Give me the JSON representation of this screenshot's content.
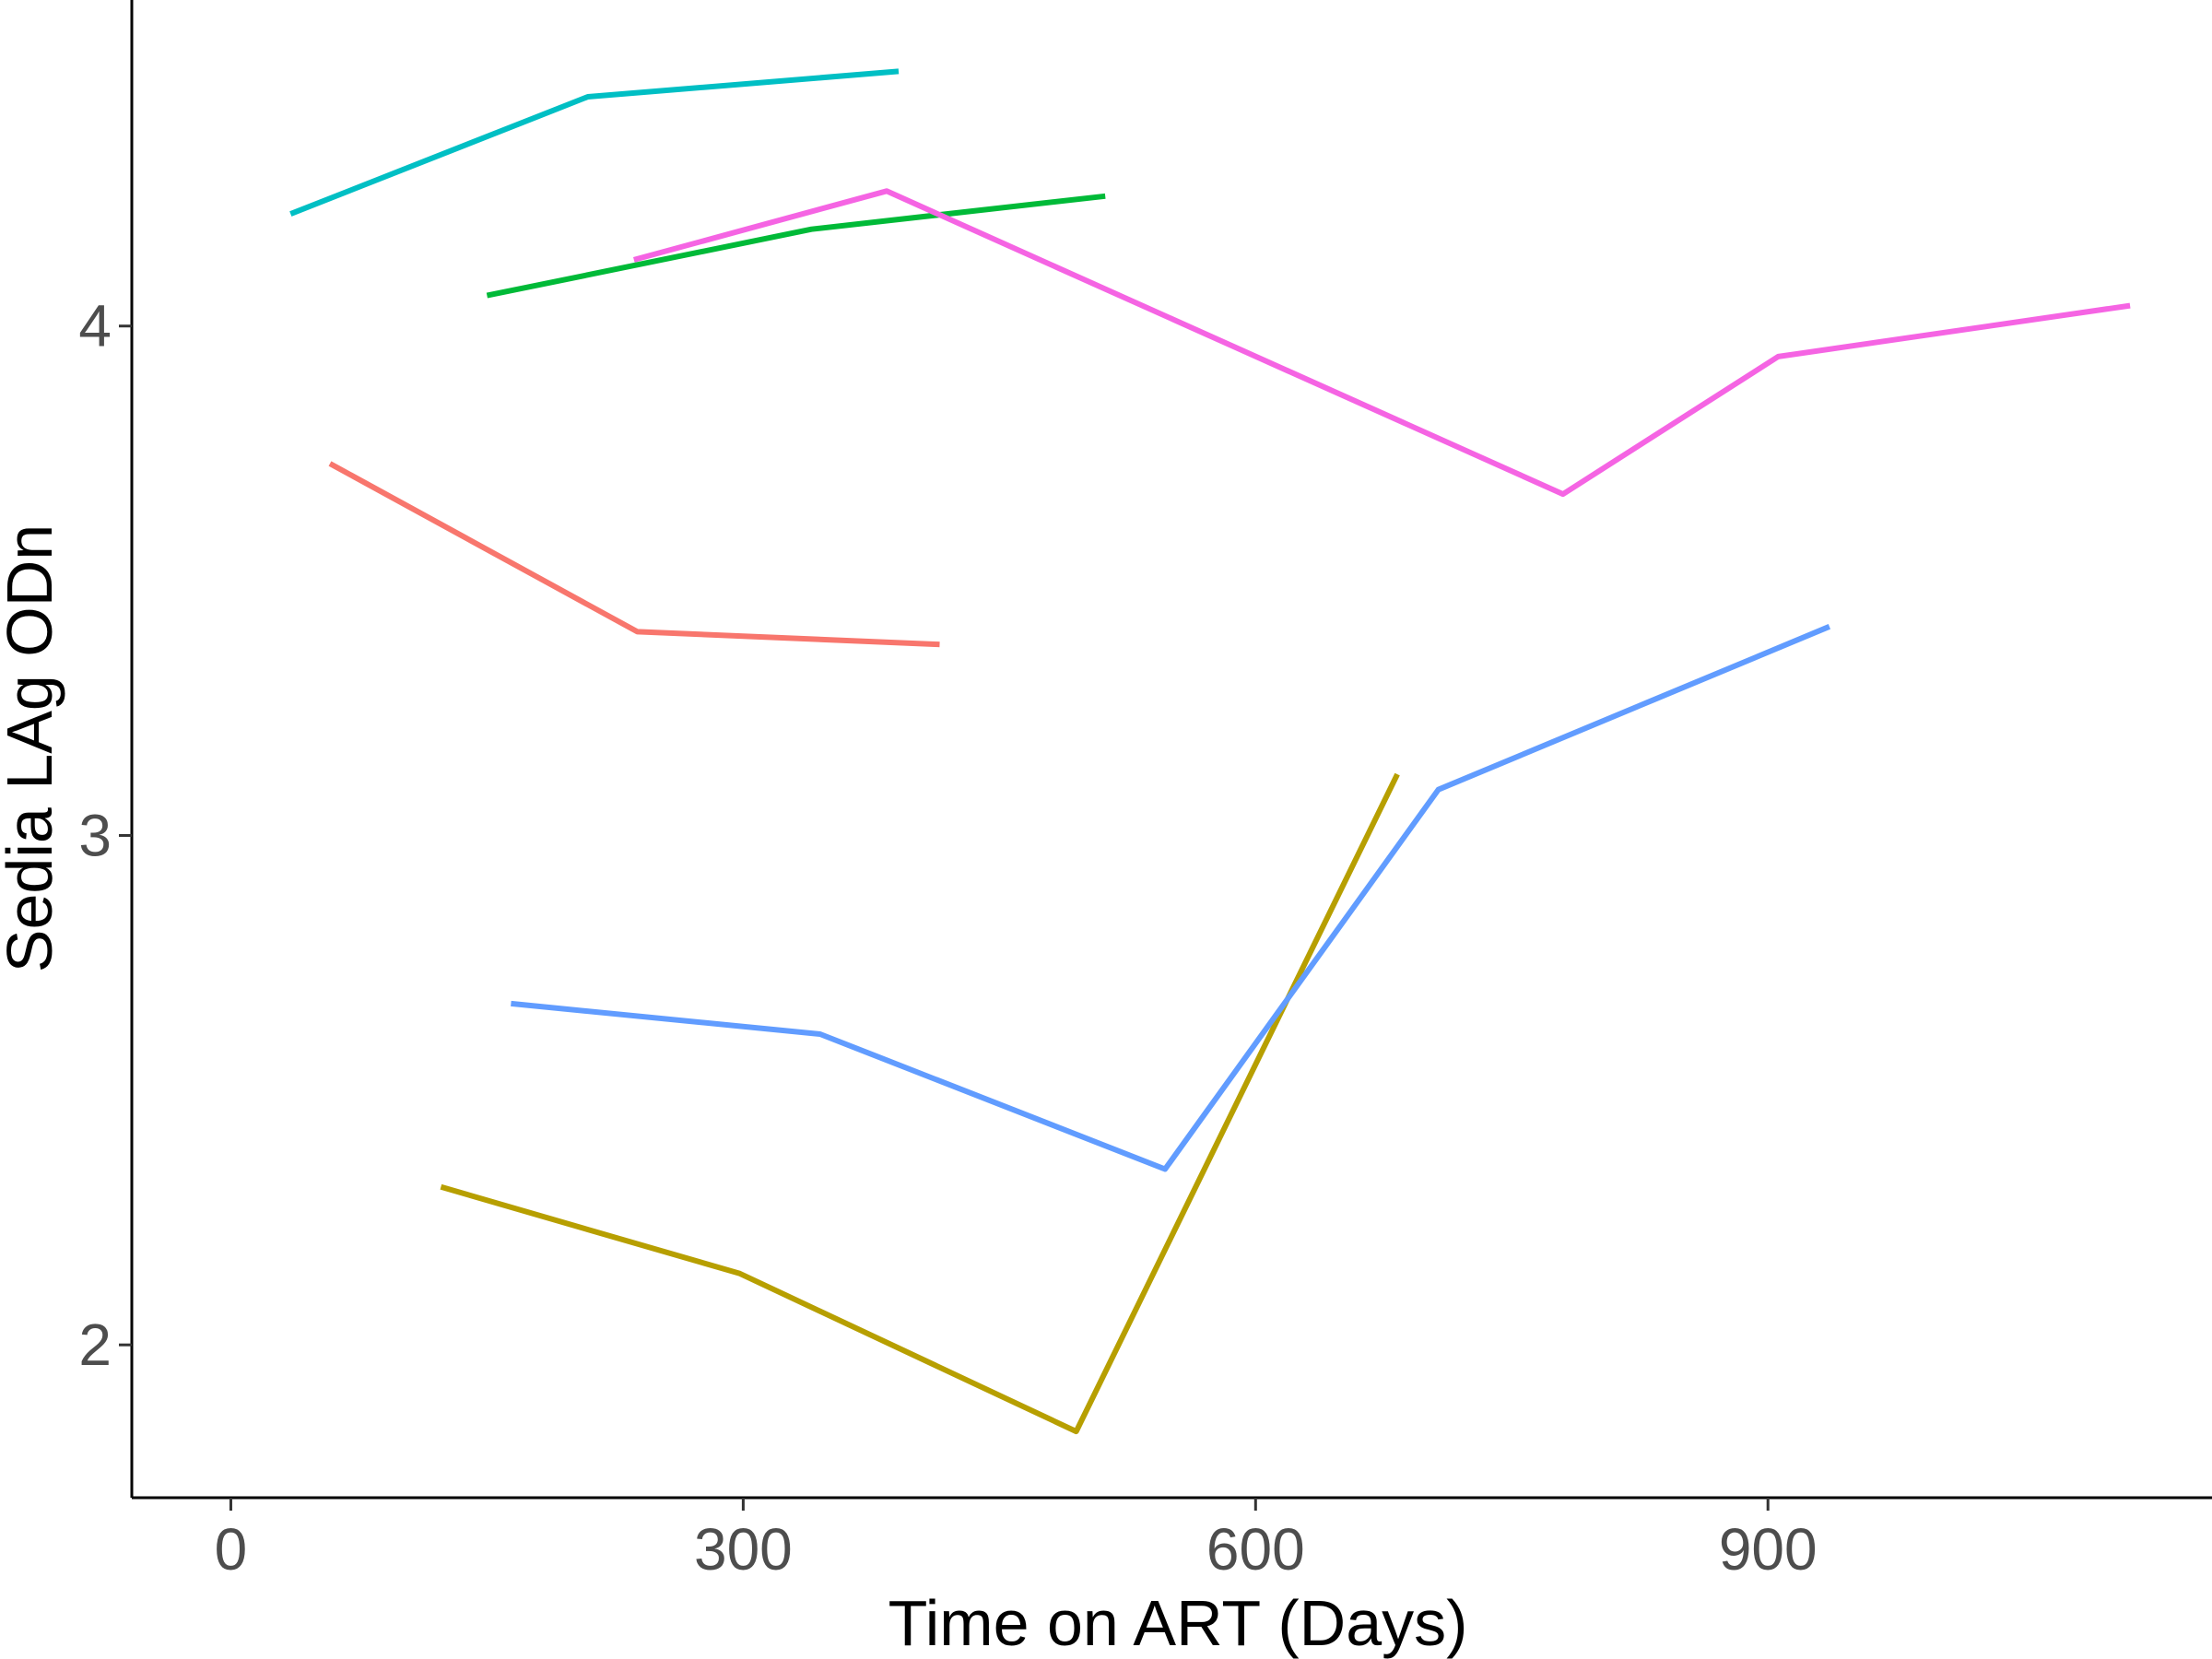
{
  "chart_data": {
    "type": "line",
    "title": "",
    "xlabel": "Time on ART (Days)",
    "ylabel": "Sedia LAg ODn",
    "xlim": [
      -58,
      1160
    ],
    "ylim": [
      1.7,
      4.64
    ],
    "x_ticks": [
      0,
      300,
      600,
      900
    ],
    "x_tick_labels": [
      "0",
      "300",
      "600",
      "900"
    ],
    "y_ticks": [
      2,
      3,
      4
    ],
    "y_tick_labels": [
      "2",
      "3",
      "4"
    ],
    "grid": false,
    "legend": "none",
    "series": [
      {
        "color": "#F8766D",
        "points": [
          [
            58,
            3.73
          ],
          [
            238,
            3.4
          ],
          [
            415,
            3.375
          ]
        ]
      },
      {
        "color": "#B79F00",
        "points": [
          [
            123,
            2.31
          ],
          [
            298,
            2.14
          ],
          [
            495,
            1.83
          ],
          [
            683,
            3.12
          ]
        ]
      },
      {
        "color": "#00BA38",
        "points": [
          [
            150,
            4.06
          ],
          [
            340,
            4.19
          ],
          [
            512,
            4.255
          ]
        ]
      },
      {
        "color": "#00BFC4",
        "points": [
          [
            35,
            4.22
          ],
          [
            209,
            4.45
          ],
          [
            391,
            4.5
          ]
        ]
      },
      {
        "color": "#619CFF",
        "points": [
          [
            164,
            2.67
          ],
          [
            345,
            2.61
          ],
          [
            547,
            2.345
          ],
          [
            707,
            3.09
          ],
          [
            936,
            3.41
          ]
        ]
      },
      {
        "color": "#F564E3",
        "points": [
          [
            236,
            4.13
          ],
          [
            384,
            4.265
          ],
          [
            780,
            3.67
          ],
          [
            906,
            3.94
          ],
          [
            1112,
            4.04
          ]
        ]
      }
    ]
  }
}
